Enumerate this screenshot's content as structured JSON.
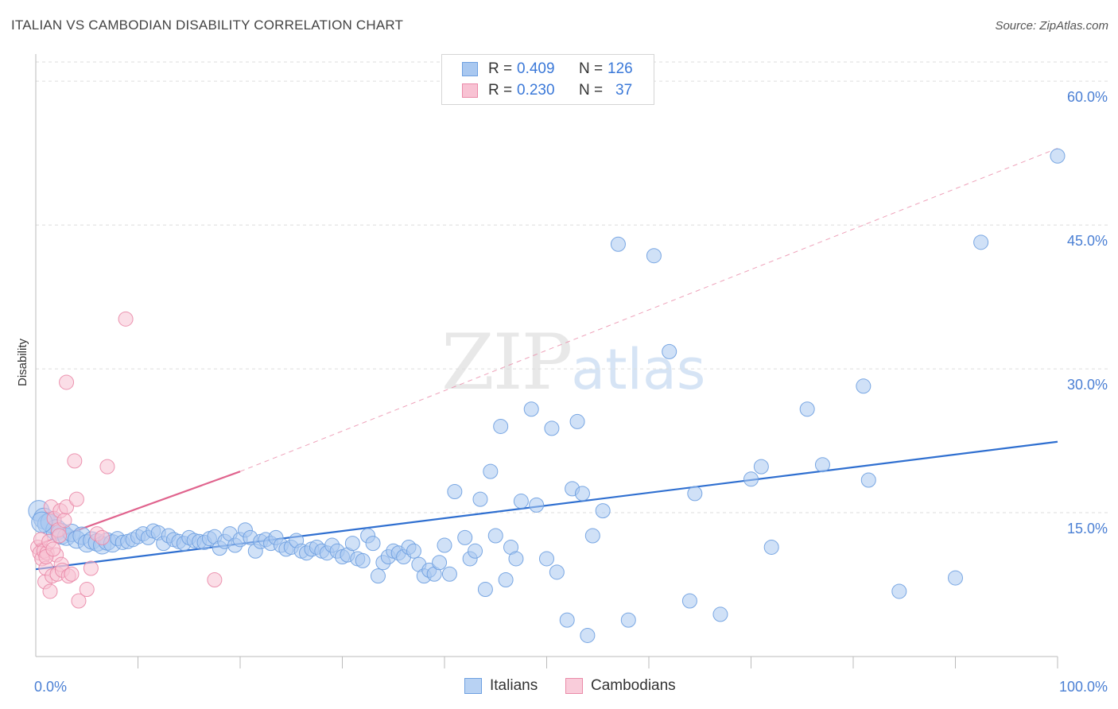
{
  "title": "ITALIAN VS CAMBODIAN DISABILITY CORRELATION CHART",
  "source": "Source: ZipAtlas.com",
  "watermark": {
    "zip": "ZIP",
    "atlas": "atlas"
  },
  "legend": {
    "r_label": "R =",
    "n_label": "N =",
    "rows": [
      {
        "r": "0.409",
        "n": "126",
        "color": "#a9c8f0",
        "border": "#6d9fe0"
      },
      {
        "r": "0.230",
        "n": "37",
        "color": "#f8c2d3",
        "border": "#ea8aa8"
      }
    ]
  },
  "bottom_legend": [
    {
      "label": "Italians",
      "color": "#b8d2f3",
      "border": "#6d9fe0"
    },
    {
      "label": "Cambodians",
      "color": "#f9ccda",
      "border": "#ea8aa8"
    }
  ],
  "chart_data": {
    "type": "scatter",
    "ylabel": "Disability",
    "xlim": [
      0,
      100
    ],
    "ylim": [
      0,
      62
    ],
    "y_ticks": [
      "15.0%",
      "30.0%",
      "45.0%",
      "60.0%"
    ],
    "y_tick_values": [
      15,
      30,
      45,
      60
    ],
    "x_tick_labels": [
      "0.0%",
      "100.0%"
    ],
    "series": [
      {
        "name": "Italians",
        "color": "#6d9fe0",
        "fill": "#a9c8f0",
        "trend": {
          "x": [
            0,
            100
          ],
          "y": [
            9.1,
            22.4
          ],
          "style": "solid"
        },
        "points": [
          [
            0.3,
            15.2
          ],
          [
            0.8,
            14.4
          ],
          [
            1.2,
            13.8
          ],
          [
            1.5,
            14.0
          ],
          [
            2.0,
            13.2
          ],
          [
            2.5,
            12.8
          ],
          [
            3.0,
            12.5
          ],
          [
            3.5,
            12.9
          ],
          [
            4.0,
            12.2
          ],
          [
            4.5,
            12.6
          ],
          [
            5.0,
            11.8
          ],
          [
            5.5,
            12.1
          ],
          [
            6.0,
            11.9
          ],
          [
            6.5,
            11.6
          ],
          [
            7.0,
            12.0
          ],
          [
            7.5,
            11.8
          ],
          [
            8.0,
            12.3
          ],
          [
            8.5,
            11.9
          ],
          [
            9.0,
            12.0
          ],
          [
            9.5,
            12.2
          ],
          [
            10.0,
            12.5
          ],
          [
            10.5,
            12.8
          ],
          [
            11.0,
            12.4
          ],
          [
            11.5,
            13.1
          ],
          [
            12.0,
            12.9
          ],
          [
            12.5,
            11.8
          ],
          [
            13.0,
            12.6
          ],
          [
            13.5,
            12.2
          ],
          [
            14.0,
            12.0
          ],
          [
            14.5,
            11.8
          ],
          [
            15.0,
            12.4
          ],
          [
            15.5,
            12.1
          ],
          [
            16.0,
            12.0
          ],
          [
            16.5,
            11.9
          ],
          [
            17.0,
            12.3
          ],
          [
            17.5,
            12.5
          ],
          [
            18.0,
            11.3
          ],
          [
            18.5,
            12.0
          ],
          [
            19.0,
            12.8
          ],
          [
            19.5,
            11.6
          ],
          [
            20.0,
            12.2
          ],
          [
            20.5,
            13.2
          ],
          [
            21.0,
            12.4
          ],
          [
            21.5,
            11.0
          ],
          [
            22.0,
            12.0
          ],
          [
            22.5,
            12.2
          ],
          [
            23.0,
            11.8
          ],
          [
            23.5,
            12.4
          ],
          [
            24.0,
            11.6
          ],
          [
            24.5,
            11.2
          ],
          [
            25.0,
            11.4
          ],
          [
            25.5,
            12.1
          ],
          [
            26.0,
            11.0
          ],
          [
            26.5,
            10.8
          ],
          [
            27.0,
            11.2
          ],
          [
            27.5,
            11.4
          ],
          [
            28.0,
            11.0
          ],
          [
            28.5,
            10.8
          ],
          [
            29.0,
            11.6
          ],
          [
            29.5,
            11.0
          ],
          [
            30.0,
            10.4
          ],
          [
            30.5,
            10.6
          ],
          [
            31.0,
            11.8
          ],
          [
            31.5,
            10.2
          ],
          [
            32.0,
            10.0
          ],
          [
            32.5,
            12.6
          ],
          [
            33.0,
            11.8
          ],
          [
            33.5,
            8.4
          ],
          [
            34.0,
            9.8
          ],
          [
            34.5,
            10.4
          ],
          [
            35.0,
            11.0
          ],
          [
            35.5,
            10.8
          ],
          [
            36.0,
            10.4
          ],
          [
            36.5,
            11.4
          ],
          [
            37.0,
            11.0
          ],
          [
            37.5,
            9.6
          ],
          [
            38.0,
            8.4
          ],
          [
            38.5,
            9.0
          ],
          [
            39.0,
            8.6
          ],
          [
            39.5,
            9.8
          ],
          [
            40.0,
            11.6
          ],
          [
            40.5,
            8.6
          ],
          [
            41.0,
            17.2
          ],
          [
            42.0,
            12.4
          ],
          [
            42.5,
            10.2
          ],
          [
            43.0,
            11.0
          ],
          [
            43.5,
            16.4
          ],
          [
            44.0,
            7.0
          ],
          [
            44.5,
            19.3
          ],
          [
            45.0,
            12.6
          ],
          [
            45.5,
            24.0
          ],
          [
            46.0,
            8.0
          ],
          [
            46.5,
            11.4
          ],
          [
            47.0,
            10.2
          ],
          [
            47.5,
            16.2
          ],
          [
            48.5,
            25.8
          ],
          [
            49.0,
            15.8
          ],
          [
            50.0,
            10.2
          ],
          [
            50.5,
            23.8
          ],
          [
            51.0,
            8.8
          ],
          [
            52.0,
            3.8
          ],
          [
            52.5,
            17.5
          ],
          [
            53.0,
            24.5
          ],
          [
            53.5,
            17.0
          ],
          [
            54.0,
            2.2
          ],
          [
            54.5,
            12.6
          ],
          [
            55.5,
            15.2
          ],
          [
            57.0,
            43.0
          ],
          [
            58.0,
            3.8
          ],
          [
            60.5,
            41.8
          ],
          [
            62.0,
            31.8
          ],
          [
            64.0,
            5.8
          ],
          [
            64.5,
            17.0
          ],
          [
            67.0,
            4.4
          ],
          [
            70.0,
            18.5
          ],
          [
            71.0,
            19.8
          ],
          [
            72.0,
            11.4
          ],
          [
            75.5,
            25.8
          ],
          [
            77.0,
            20.0
          ],
          [
            81.0,
            28.2
          ],
          [
            81.5,
            18.4
          ],
          [
            84.5,
            6.8
          ],
          [
            90.0,
            8.2
          ],
          [
            92.5,
            43.2
          ],
          [
            100.0,
            52.2
          ],
          [
            0.6,
            14.0
          ]
        ]
      },
      {
        "name": "Cambodians",
        "color": "#ea8aa8",
        "fill": "#f8c2d3",
        "trend": {
          "x": [
            0,
            20
          ],
          "y": [
            11.6,
            19.3
          ],
          "style": "solid",
          "extend_x": 100,
          "extend_y": 53.0
        },
        "points": [
          [
            0.2,
            11.4
          ],
          [
            0.4,
            10.8
          ],
          [
            0.5,
            12.2
          ],
          [
            0.6,
            10.2
          ],
          [
            0.8,
            11.0
          ],
          [
            0.9,
            7.8
          ],
          [
            1.0,
            9.2
          ],
          [
            1.1,
            10.8
          ],
          [
            1.3,
            12.0
          ],
          [
            1.4,
            6.8
          ],
          [
            1.5,
            15.6
          ],
          [
            1.6,
            8.4
          ],
          [
            1.8,
            14.4
          ],
          [
            2.0,
            10.6
          ],
          [
            2.1,
            8.6
          ],
          [
            2.2,
            13.2
          ],
          [
            2.4,
            15.2
          ],
          [
            2.5,
            9.6
          ],
          [
            2.6,
            9.0
          ],
          [
            2.8,
            14.2
          ],
          [
            3.0,
            15.6
          ],
          [
            3.2,
            8.4
          ],
          [
            3.0,
            28.6
          ],
          [
            3.5,
            8.6
          ],
          [
            3.8,
            20.4
          ],
          [
            4.0,
            16.4
          ],
          [
            4.2,
            5.8
          ],
          [
            5.0,
            7.0
          ],
          [
            5.4,
            9.2
          ],
          [
            6.0,
            12.8
          ],
          [
            6.5,
            12.4
          ],
          [
            7.0,
            19.8
          ],
          [
            8.8,
            35.2
          ],
          [
            17.5,
            8.0
          ],
          [
            1.0,
            10.4
          ],
          [
            1.7,
            11.2
          ],
          [
            2.3,
            12.6
          ]
        ]
      }
    ]
  }
}
